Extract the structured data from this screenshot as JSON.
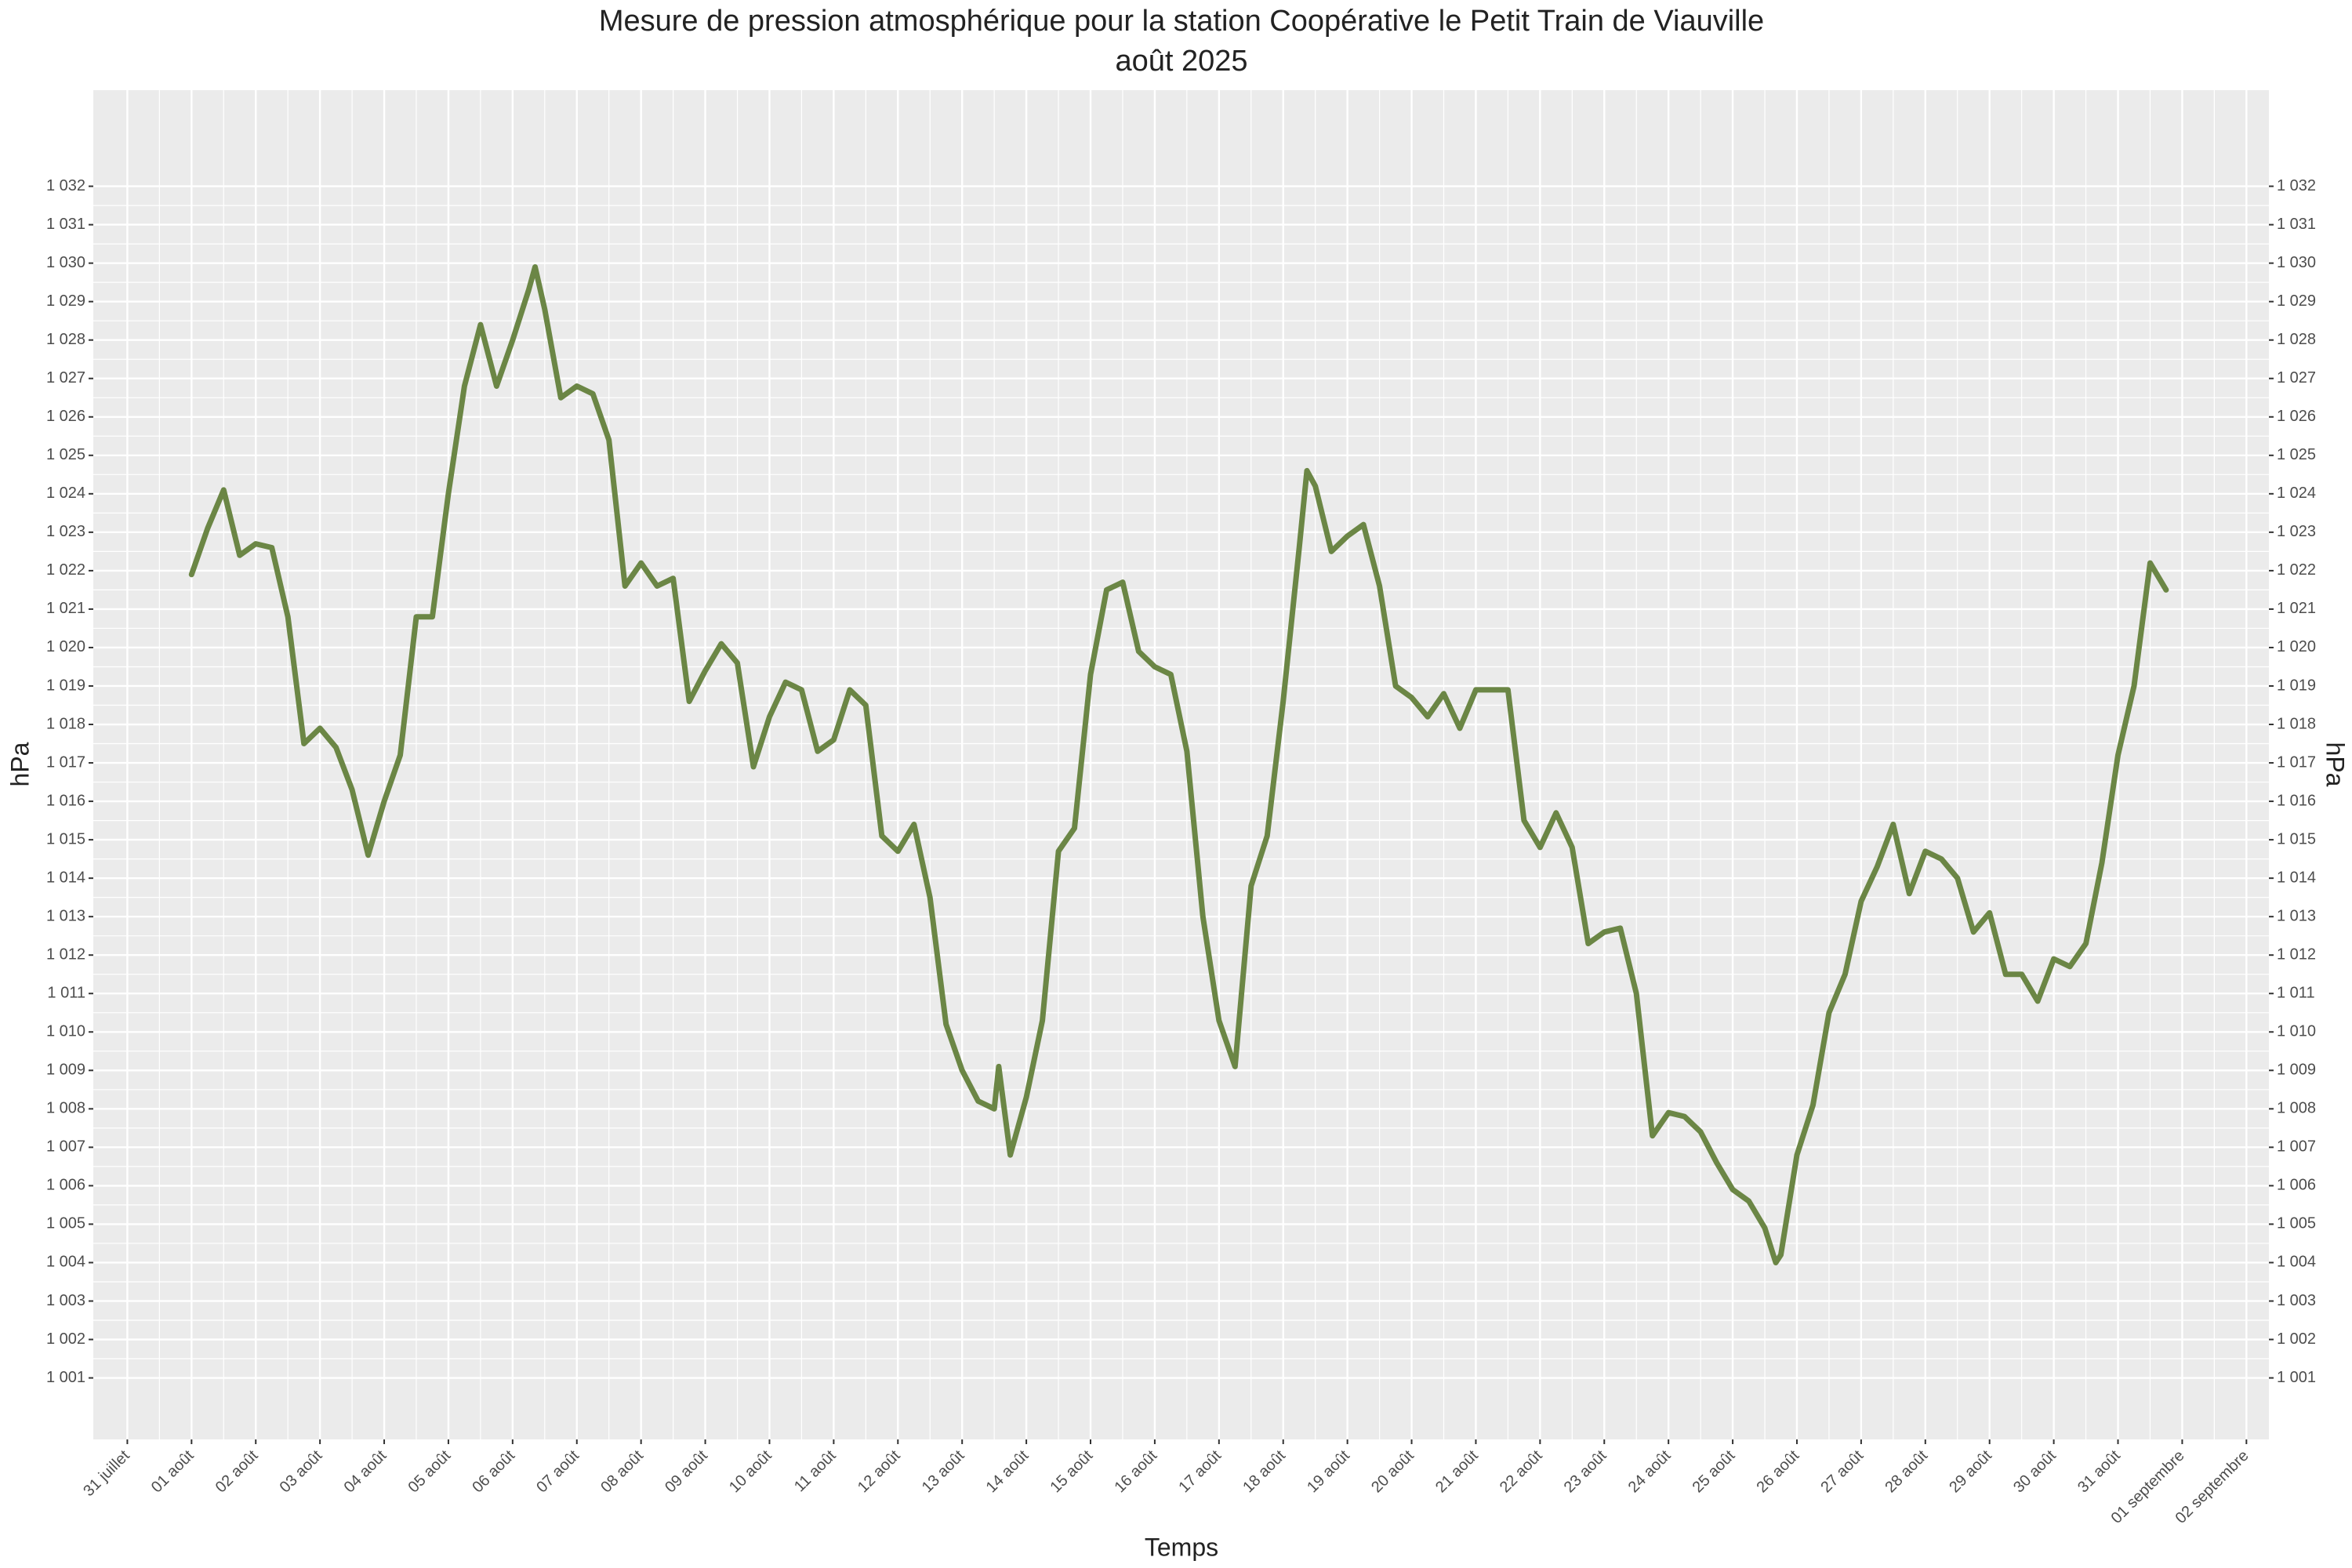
{
  "chart_data": {
    "type": "line",
    "title": "Mesure de pression atmosphérique pour la station Coopérative le Petit Train de Viauville",
    "subtitle": "août 2025",
    "xlabel": "Temps",
    "ylabel": "hPa",
    "y2label": "hPa",
    "grid": true,
    "background": "#ebebeb",
    "xlim": [
      -0.53,
      33.35
    ],
    "xticks": [
      {
        "value": 0,
        "label": "31 juillet"
      },
      {
        "value": 1,
        "label": "01 août"
      },
      {
        "value": 2,
        "label": "02 août"
      },
      {
        "value": 3,
        "label": "03 août"
      },
      {
        "value": 4,
        "label": "04 août"
      },
      {
        "value": 5,
        "label": "05 août"
      },
      {
        "value": 6,
        "label": "06 août"
      },
      {
        "value": 7,
        "label": "07 août"
      },
      {
        "value": 8,
        "label": "08 août"
      },
      {
        "value": 9,
        "label": "09 août"
      },
      {
        "value": 10,
        "label": "10 août"
      },
      {
        "value": 11,
        "label": "11 août"
      },
      {
        "value": 12,
        "label": "12 août"
      },
      {
        "value": 13,
        "label": "13 août"
      },
      {
        "value": 14,
        "label": "14 août"
      },
      {
        "value": 15,
        "label": "15 août"
      },
      {
        "value": 16,
        "label": "16 août"
      },
      {
        "value": 17,
        "label": "17 août"
      },
      {
        "value": 18,
        "label": "18 août"
      },
      {
        "value": 19,
        "label": "19 août"
      },
      {
        "value": 20,
        "label": "20 août"
      },
      {
        "value": 21,
        "label": "21 août"
      },
      {
        "value": 22,
        "label": "22 août"
      },
      {
        "value": 23,
        "label": "23 août"
      },
      {
        "value": 24,
        "label": "24 août"
      },
      {
        "value": 25,
        "label": "25 août"
      },
      {
        "value": 26,
        "label": "26 août"
      },
      {
        "value": 27,
        "label": "27 août"
      },
      {
        "value": 28,
        "label": "28 août"
      },
      {
        "value": 29,
        "label": "29 août"
      },
      {
        "value": 30,
        "label": "30 août"
      },
      {
        "value": 31,
        "label": "31 août"
      },
      {
        "value": 32,
        "label": "01 septembre"
      },
      {
        "value": 33,
        "label": "02 septembre"
      }
    ],
    "ylim": [
      999.4,
      1034.5
    ],
    "yticks": [
      {
        "value": 1001,
        "label": "1 001"
      },
      {
        "value": 1002,
        "label": "1 002"
      },
      {
        "value": 1003,
        "label": "1 003"
      },
      {
        "value": 1004,
        "label": "1 004"
      },
      {
        "value": 1005,
        "label": "1 005"
      },
      {
        "value": 1006,
        "label": "1 006"
      },
      {
        "value": 1007,
        "label": "1 007"
      },
      {
        "value": 1008,
        "label": "1 008"
      },
      {
        "value": 1009,
        "label": "1 009"
      },
      {
        "value": 1010,
        "label": "1 010"
      },
      {
        "value": 1011,
        "label": "1 011"
      },
      {
        "value": 1012,
        "label": "1 012"
      },
      {
        "value": 1013,
        "label": "1 013"
      },
      {
        "value": 1014,
        "label": "1 014"
      },
      {
        "value": 1015,
        "label": "1 015"
      },
      {
        "value": 1016,
        "label": "1 016"
      },
      {
        "value": 1017,
        "label": "1 017"
      },
      {
        "value": 1018,
        "label": "1 018"
      },
      {
        "value": 1019,
        "label": "1 019"
      },
      {
        "value": 1020,
        "label": "1 020"
      },
      {
        "value": 1021,
        "label": "1 021"
      },
      {
        "value": 1022,
        "label": "1 022"
      },
      {
        "value": 1023,
        "label": "1 023"
      },
      {
        "value": 1024,
        "label": "1 024"
      },
      {
        "value": 1025,
        "label": "1 025"
      },
      {
        "value": 1026,
        "label": "1 026"
      },
      {
        "value": 1027,
        "label": "1 027"
      },
      {
        "value": 1028,
        "label": "1 028"
      },
      {
        "value": 1029,
        "label": "1 029"
      },
      {
        "value": 1030,
        "label": "1 030"
      },
      {
        "value": 1031,
        "label": "1 031"
      },
      {
        "value": 1032,
        "label": "1 032"
      }
    ],
    "y2lim": [
      999.4,
      1034.5
    ],
    "y2ticks": [
      {
        "value": 1001,
        "label": "1 001"
      },
      {
        "value": 1002,
        "label": "1 002"
      },
      {
        "value": 1003,
        "label": "1 003"
      },
      {
        "value": 1004,
        "label": "1 004"
      },
      {
        "value": 1005,
        "label": "1 005"
      },
      {
        "value": 1006,
        "label": "1 006"
      },
      {
        "value": 1007,
        "label": "1 007"
      },
      {
        "value": 1008,
        "label": "1 008"
      },
      {
        "value": 1009,
        "label": "1 009"
      },
      {
        "value": 1010,
        "label": "1 010"
      },
      {
        "value": 1011,
        "label": "1 011"
      },
      {
        "value": 1012,
        "label": "1 012"
      },
      {
        "value": 1013,
        "label": "1 013"
      },
      {
        "value": 1014,
        "label": "1 014"
      },
      {
        "value": 1015,
        "label": "1 015"
      },
      {
        "value": 1016,
        "label": "1 016"
      },
      {
        "value": 1017,
        "label": "1 017"
      },
      {
        "value": 1018,
        "label": "1 018"
      },
      {
        "value": 1019,
        "label": "1 019"
      },
      {
        "value": 1020,
        "label": "1 020"
      },
      {
        "value": 1021,
        "label": "1 021"
      },
      {
        "value": 1022,
        "label": "1 022"
      },
      {
        "value": 1023,
        "label": "1 023"
      },
      {
        "value": 1024,
        "label": "1 024"
      },
      {
        "value": 1025,
        "label": "1 025"
      },
      {
        "value": 1026,
        "label": "1 026"
      },
      {
        "value": 1027,
        "label": "1 027"
      },
      {
        "value": 1028,
        "label": "1 028"
      },
      {
        "value": 1029,
        "label": "1 029"
      },
      {
        "value": 1030,
        "label": "1 030"
      },
      {
        "value": 1031,
        "label": "1 031"
      },
      {
        "value": 1032,
        "label": "1 032"
      }
    ],
    "color": "#6b8645",
    "x": [
      1,
      1.25,
      1.5,
      1.75,
      2,
      2.25,
      2.5,
      2.75,
      3,
      3.25,
      3.5,
      3.75,
      4,
      4.25,
      4.5,
      4.75,
      5,
      5.25,
      5.5,
      5.75,
      6,
      6.25,
      6.35,
      6.5,
      6.75,
      7,
      7.25,
      7.5,
      7.75,
      8,
      8.25,
      8.5,
      8.75,
      9,
      9.25,
      9.5,
      9.75,
      10,
      10.25,
      10.5,
      10.75,
      11,
      11.25,
      11.5,
      11.75,
      12,
      12.25,
      12.5,
      12.75,
      13,
      13.25,
      13.5,
      13.57,
      13.75,
      14,
      14.25,
      14.5,
      14.75,
      15,
      15.25,
      15.5,
      15.75,
      16,
      16.25,
      16.5,
      16.75,
      17,
      17.25,
      17.5,
      17.75,
      18,
      18.25,
      18.37,
      18.5,
      18.75,
      19,
      19.25,
      19.5,
      19.75,
      20,
      20.25,
      20.5,
      20.75,
      21,
      21.25,
      21.5,
      21.75,
      22,
      22.25,
      22.5,
      22.75,
      23,
      23.25,
      23.5,
      23.75,
      24,
      24.25,
      24.5,
      24.75,
      25,
      25.25,
      25.5,
      25.67,
      25.75,
      26,
      26.25,
      26.5,
      26.75,
      27,
      27.25,
      27.5,
      27.75,
      28,
      28.25,
      28.5,
      28.75,
      29,
      29.25,
      29.5,
      29.75,
      30,
      30.25,
      30.5,
      30.75,
      31,
      31.25,
      31.5,
      31.75
    ],
    "values": [
      1021.9,
      1023.1,
      1024.1,
      1022.4,
      1022.7,
      1022.6,
      1020.8,
      1017.5,
      1017.9,
      1017.4,
      1016.3,
      1014.6,
      1016.0,
      1017.2,
      1020.8,
      1020.8,
      1024.0,
      1026.8,
      1028.4,
      1026.8,
      1028.0,
      1029.3,
      1029.9,
      1028.8,
      1026.5,
      1026.8,
      1026.6,
      1025.4,
      1021.6,
      1022.2,
      1021.6,
      1021.8,
      1018.6,
      1019.4,
      1020.1,
      1019.6,
      1016.9,
      1018.2,
      1019.1,
      1018.9,
      1017.3,
      1017.6,
      1018.9,
      1018.5,
      1015.1,
      1014.7,
      1015.4,
      1013.5,
      1010.2,
      1009.0,
      1008.2,
      1008.0,
      1009.1,
      1006.8,
      1008.3,
      1010.3,
      1014.7,
      1015.3,
      1019.3,
      1021.5,
      1021.7,
      1019.9,
      1019.5,
      1019.3,
      1017.3,
      1013.0,
      1010.3,
      1009.1,
      1013.8,
      1015.1,
      1018.6,
      1022.6,
      1024.6,
      1024.2,
      1022.5,
      1022.9,
      1023.2,
      1021.6,
      1019.0,
      1018.7,
      1018.2,
      1018.8,
      1017.9,
      1018.9,
      1018.9,
      1018.9,
      1015.5,
      1014.8,
      1015.7,
      1014.8,
      1012.3,
      1012.6,
      1012.7,
      1011.0,
      1007.3,
      1007.9,
      1007.8,
      1007.4,
      1006.6,
      1005.9,
      1005.6,
      1004.9,
      1004.0,
      1004.2,
      1006.8,
      1008.1,
      1010.5,
      1011.5,
      1013.4,
      1014.3,
      1015.4,
      1013.6,
      1014.7,
      1014.5,
      1014.0,
      1012.6,
      1013.1,
      1011.5,
      1011.5,
      1010.8,
      1011.9,
      1011.7,
      1012.3,
      1014.4,
      1017.2,
      1019.0,
      1022.2,
      1021.5
    ]
  }
}
